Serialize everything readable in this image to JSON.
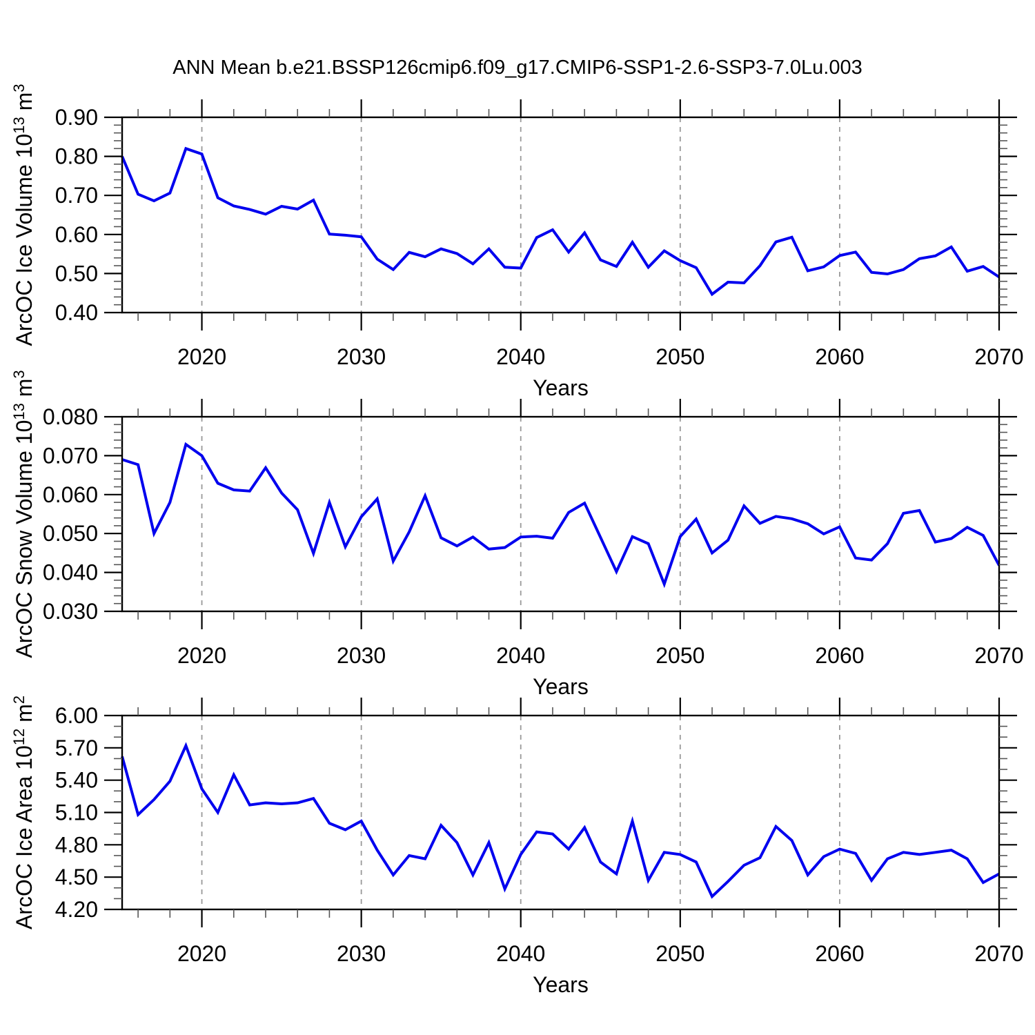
{
  "page": {
    "title": "ANN Mean b.e21.BSSP126cmip6.f09_g17.CMIP6-SSP1-2.6-SSP3-7.0Lu.003"
  },
  "style": {
    "line_color": "#0000EE",
    "axis_color": "#000000",
    "minor_tick_color": "#555555",
    "grid_color": "#999999",
    "background": "#ffffff"
  },
  "x_axis": {
    "label": "Years",
    "range": [
      2015,
      2070
    ],
    "major_ticks": [
      2020,
      2030,
      2040,
      2050,
      2060,
      2070
    ],
    "tick_labels": [
      "2020",
      "2030",
      "2040",
      "2050",
      "2060",
      "2070"
    ],
    "minor_step": 2,
    "gridline_years": [
      2020,
      2030,
      2040,
      2050,
      2060
    ]
  },
  "years": [
    2015,
    2016,
    2017,
    2018,
    2019,
    2020,
    2021,
    2022,
    2023,
    2024,
    2025,
    2026,
    2027,
    2028,
    2029,
    2030,
    2031,
    2032,
    2033,
    2034,
    2035,
    2036,
    2037,
    2038,
    2039,
    2040,
    2041,
    2042,
    2043,
    2044,
    2045,
    2046,
    2047,
    2048,
    2049,
    2050,
    2051,
    2052,
    2053,
    2054,
    2055,
    2056,
    2057,
    2058,
    2059,
    2060,
    2061,
    2062,
    2063,
    2064,
    2065,
    2066,
    2067,
    2068,
    2069,
    2070
  ],
  "chart_data": [
    {
      "type": "line",
      "name": "arcoc-ice-volume",
      "xlabel": "Years",
      "ylabel": "ArcOC Ice Volume 10¹³ m³",
      "ylabel_parts": [
        {
          "t": "ArcOC Ice Volume 10"
        },
        {
          "sup": "13"
        },
        {
          "t": " m"
        },
        {
          "sup": "3"
        }
      ],
      "ylim": [
        0.4,
        0.9
      ],
      "ytick_values": [
        0.4,
        0.5,
        0.6,
        0.7,
        0.8,
        0.9
      ],
      "ytick_labels": [
        "0.40",
        "0.50",
        "0.60",
        "0.70",
        "0.80",
        "0.90"
      ],
      "y_minor_step": 0.02,
      "grid": "x-dashed",
      "legend": "none",
      "values": [
        0.8,
        0.703,
        0.686,
        0.706,
        0.82,
        0.806,
        0.694,
        0.673,
        0.664,
        0.652,
        0.672,
        0.665,
        0.688,
        0.601,
        0.598,
        0.594,
        0.537,
        0.51,
        0.554,
        0.543,
        0.563,
        0.551,
        0.525,
        0.563,
        0.516,
        0.514,
        0.592,
        0.612,
        0.555,
        0.604,
        0.535,
        0.518,
        0.58,
        0.516,
        0.558,
        0.533,
        0.515,
        0.447,
        0.478,
        0.476,
        0.52,
        0.581,
        0.593,
        0.507,
        0.517,
        0.546,
        0.555,
        0.503,
        0.499,
        0.51,
        0.538,
        0.545,
        0.568,
        0.506,
        0.518,
        0.491
      ]
    },
    {
      "type": "line",
      "name": "arcoc-snow-volume",
      "xlabel": "Years",
      "ylabel": "ArcOC Snow Volume 10¹³ m³",
      "ylabel_parts": [
        {
          "t": "ArcOC Snow Volume 10"
        },
        {
          "sup": "13"
        },
        {
          "t": " m"
        },
        {
          "sup": "3"
        }
      ],
      "ylim": [
        0.03,
        0.08
      ],
      "ytick_values": [
        0.03,
        0.04,
        0.05,
        0.06,
        0.07,
        0.08
      ],
      "ytick_labels": [
        "0.030",
        "0.040",
        "0.050",
        "0.060",
        "0.070",
        "0.080"
      ],
      "y_minor_step": 0.002,
      "grid": "x-dashed",
      "legend": "none",
      "values": [
        0.069,
        0.0677,
        0.05,
        0.058,
        0.0729,
        0.07,
        0.0629,
        0.0612,
        0.0609,
        0.0669,
        0.0604,
        0.0561,
        0.0449,
        0.058,
        0.0466,
        0.0543,
        0.0589,
        0.0429,
        0.0504,
        0.0597,
        0.0489,
        0.0468,
        0.0491,
        0.046,
        0.0464,
        0.0491,
        0.0493,
        0.0488,
        0.0554,
        0.0578,
        0.049,
        0.0402,
        0.0492,
        0.0474,
        0.037,
        0.0492,
        0.0537,
        0.045,
        0.0483,
        0.0571,
        0.0526,
        0.0544,
        0.0538,
        0.0525,
        0.0499,
        0.0517,
        0.0437,
        0.0432,
        0.0474,
        0.0552,
        0.0559,
        0.0478,
        0.0487,
        0.0516,
        0.0495,
        0.0418
      ]
    },
    {
      "type": "line",
      "name": "arcoc-ice-area",
      "xlabel": "Years",
      "ylabel": "ArcOC Ice Area 10¹² m²",
      "ylabel_parts": [
        {
          "t": "ArcOC Ice Area 10"
        },
        {
          "sup": "12"
        },
        {
          "t": " m"
        },
        {
          "sup": "2"
        }
      ],
      "ylim": [
        4.2,
        6.0
      ],
      "ytick_values": [
        4.2,
        4.5,
        4.8,
        5.1,
        5.4,
        5.7,
        6.0
      ],
      "ytick_labels": [
        "4.20",
        "4.50",
        "4.80",
        "5.10",
        "5.40",
        "5.70",
        "6.00"
      ],
      "y_minor_step": 0.1,
      "grid": "x-dashed",
      "legend": "none",
      "values": [
        5.62,
        5.08,
        5.22,
        5.39,
        5.72,
        5.32,
        5.1,
        5.45,
        5.17,
        5.19,
        5.18,
        5.19,
        5.23,
        5.0,
        4.94,
        5.02,
        4.75,
        4.52,
        4.7,
        4.67,
        4.98,
        4.82,
        4.52,
        4.82,
        4.39,
        4.71,
        4.92,
        4.9,
        4.76,
        4.96,
        4.64,
        4.53,
        5.02,
        4.47,
        4.73,
        4.71,
        4.64,
        4.32,
        4.46,
        4.61,
        4.68,
        4.97,
        4.84,
        4.52,
        4.69,
        4.76,
        4.72,
        4.47,
        4.67,
        4.73,
        4.71,
        4.73,
        4.75,
        4.67,
        4.45,
        4.53
      ]
    }
  ]
}
